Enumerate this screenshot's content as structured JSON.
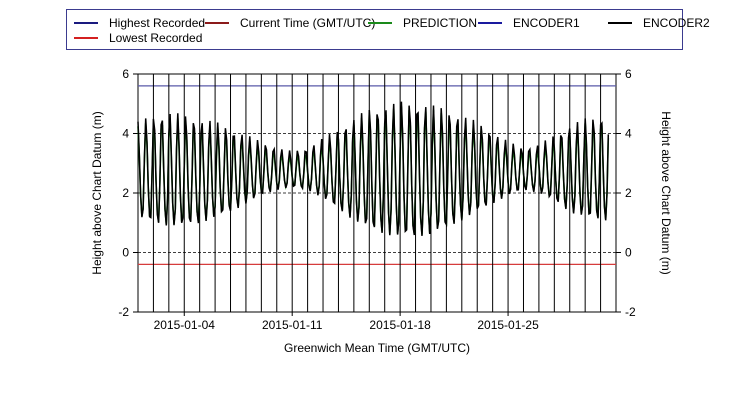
{
  "legend": {
    "items": [
      {
        "label": "Highest Recorded",
        "color": "#1a1a7f"
      },
      {
        "label": "Current Time (GMT/UTC)",
        "color": "#8b1a1a"
      },
      {
        "label": "PREDICTION",
        "color": "#1a8a1a"
      },
      {
        "label": "ENCODER1",
        "color": "#1a1a9f"
      },
      {
        "label": "ENCODER2",
        "color": "#000000"
      },
      {
        "label": "Lowest Recorded",
        "color": "#d42020"
      }
    ]
  },
  "chart_data": {
    "type": "line",
    "title": "",
    "xlabel": "Greenwich Mean Time (GMT/UTC)",
    "ylabel": "Height above Chart Datum (m)",
    "ylabel_right": "Height above Chart Datum (m)",
    "x_start": "2015-01-01",
    "x_end": "2015-02-01",
    "xticks": [
      "2015-01-04",
      "2015-01-11",
      "2015-01-18",
      "2015-01-25"
    ],
    "ylim": [
      -2,
      6
    ],
    "yticks": [
      "-2",
      "0",
      "2",
      "4",
      "6"
    ],
    "grid": "dashed horizontal",
    "highest_recorded": 5.6,
    "lowest_recorded": -0.4,
    "colors": {
      "highest": "#5a5aa8",
      "lowest": "#d63c3c",
      "current_time": "#000000",
      "prediction": "#1a8a1a",
      "encoder2": "#000000"
    },
    "series": [
      {
        "name": "PREDICTION",
        "x": [
          "2015-01-01",
          "2015-01-02",
          "2015-01-03",
          "2015-01-04",
          "2015-01-05",
          "2015-01-06",
          "2015-01-07",
          "2015-01-08",
          "2015-01-09",
          "2015-01-10",
          "2015-01-11",
          "2015-01-12",
          "2015-01-13",
          "2015-01-14",
          "2015-01-15",
          "2015-01-16",
          "2015-01-17",
          "2015-01-18",
          "2015-01-19",
          "2015-01-20",
          "2015-01-21",
          "2015-01-22",
          "2015-01-23",
          "2015-01-24",
          "2015-01-25",
          "2015-01-26",
          "2015-01-27",
          "2015-01-28",
          "2015-01-29",
          "2015-01-30",
          "2015-01-31"
        ],
        "high": [
          4.1,
          4.3,
          4.4,
          4.3,
          4.2,
          4.1,
          3.9,
          3.7,
          3.5,
          3.3,
          3.2,
          3.3,
          3.6,
          3.9,
          4.2,
          4.5,
          4.6,
          4.7,
          4.7,
          4.6,
          4.5,
          4.3,
          4.1,
          3.8,
          3.5,
          3.3,
          3.4,
          3.7,
          4.0,
          4.2,
          4.3
        ],
        "low": [
          1.1,
          0.9,
          0.8,
          0.8,
          0.9,
          1.1,
          1.3,
          1.6,
          1.9,
          2.1,
          2.2,
          2.1,
          1.8,
          1.4,
          1.0,
          0.7,
          0.5,
          0.4,
          0.4,
          0.5,
          0.7,
          1.0,
          1.3,
          1.6,
          1.9,
          2.1,
          2.0,
          1.7,
          1.3,
          1.1,
          1.0
        ]
      },
      {
        "name": "ENCODER2",
        "x": [
          "2015-01-01",
          "2015-01-02",
          "2015-01-03",
          "2015-01-04",
          "2015-01-05",
          "2015-01-06",
          "2015-01-07",
          "2015-01-08",
          "2015-01-09",
          "2015-01-10",
          "2015-01-11",
          "2015-01-12",
          "2015-01-13",
          "2015-01-14",
          "2015-01-15",
          "2015-01-16",
          "2015-01-17",
          "2015-01-18",
          "2015-01-19",
          "2015-01-20",
          "2015-01-21",
          "2015-01-22",
          "2015-01-23",
          "2015-01-24",
          "2015-01-25",
          "2015-01-26",
          "2015-01-27",
          "2015-01-28",
          "2015-01-29",
          "2015-01-30",
          "2015-01-31"
        ],
        "high": [
          4.2,
          4.4,
          4.5,
          4.4,
          4.3,
          4.2,
          4.0,
          3.8,
          3.6,
          3.4,
          3.3,
          3.4,
          3.7,
          4.0,
          4.3,
          4.6,
          4.7,
          4.8,
          4.8,
          4.7,
          4.6,
          4.4,
          4.2,
          3.9,
          3.6,
          3.4,
          3.5,
          3.8,
          4.1,
          4.3,
          4.4
        ],
        "low": [
          1.0,
          0.8,
          0.7,
          0.7,
          0.8,
          1.0,
          1.2,
          1.5,
          1.8,
          2.0,
          2.1,
          2.0,
          1.7,
          1.3,
          0.9,
          0.6,
          0.4,
          0.3,
          0.3,
          0.4,
          0.6,
          0.9,
          1.2,
          1.5,
          1.8,
          2.0,
          1.9,
          1.6,
          1.2,
          1.0,
          0.9
        ]
      }
    ]
  }
}
